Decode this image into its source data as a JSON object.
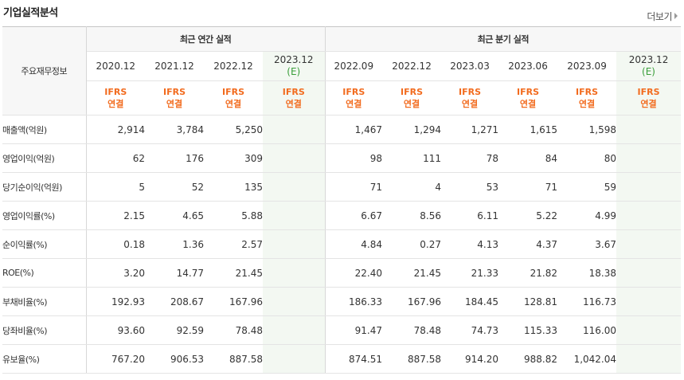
{
  "title": "기업실적분석",
  "more_label": "더보기",
  "header": {
    "row_label": "주요재무정보",
    "annual_group": "최근 연간 실적",
    "quarter_group": "최근 분기 실적",
    "periods": [
      "2020.12",
      "2021.12",
      "2022.12",
      "2023.12",
      "2022.09",
      "2022.12",
      "2023.03",
      "2023.06",
      "2023.09",
      "2023.12"
    ],
    "estimate_mark": "(E)",
    "standard_line1": "IFRS",
    "standard_line2": "연결"
  },
  "rows": [
    {
      "label": "매출액(억원)",
      "values": [
        "2,914",
        "3,784",
        "5,250",
        "",
        "1,467",
        "1,294",
        "1,271",
        "1,615",
        "1,598",
        ""
      ]
    },
    {
      "label": "영업이익(억원)",
      "values": [
        "62",
        "176",
        "309",
        "",
        "98",
        "111",
        "78",
        "84",
        "80",
        ""
      ]
    },
    {
      "label": "당기순이익(억원)",
      "values": [
        "5",
        "52",
        "135",
        "",
        "71",
        "4",
        "53",
        "71",
        "59",
        ""
      ]
    },
    {
      "label": "영업이익률(%)",
      "values": [
        "2.15",
        "4.65",
        "5.88",
        "",
        "6.67",
        "8.56",
        "6.11",
        "5.22",
        "4.99",
        ""
      ]
    },
    {
      "label": "순이익률(%)",
      "values": [
        "0.18",
        "1.36",
        "2.57",
        "",
        "4.84",
        "0.27",
        "4.13",
        "4.37",
        "3.67",
        ""
      ]
    },
    {
      "label": "ROE(%)",
      "values": [
        "3.20",
        "14.77",
        "21.45",
        "",
        "22.40",
        "21.45",
        "21.33",
        "21.82",
        "18.38",
        ""
      ]
    },
    {
      "label": "부채비율(%)",
      "values": [
        "192.93",
        "208.67",
        "167.96",
        "",
        "186.33",
        "167.96",
        "184.45",
        "128.81",
        "116.73",
        ""
      ]
    },
    {
      "label": "당좌비율(%)",
      "values": [
        "93.60",
        "92.59",
        "78.48",
        "",
        "91.47",
        "78.48",
        "74.73",
        "115.33",
        "116.00",
        ""
      ]
    },
    {
      "label": "유보율(%)",
      "values": [
        "767.20",
        "906.53",
        "887.58",
        "",
        "874.51",
        "887.58",
        "914.20",
        "988.82",
        "1,042.04",
        ""
      ]
    }
  ]
}
